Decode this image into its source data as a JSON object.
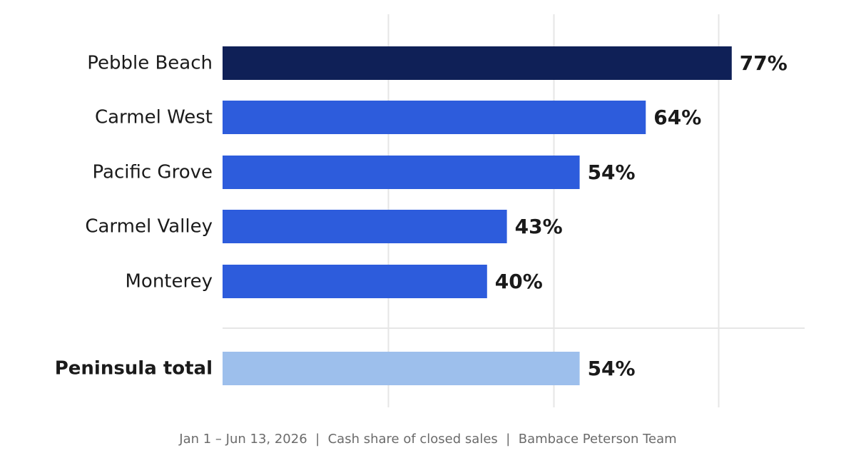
{
  "chart_data": {
    "type": "bar",
    "orientation": "horizontal",
    "categories": [
      "Pebble Beach",
      "Carmel West",
      "Pacific Grove",
      "Carmel Valley",
      "Monterey"
    ],
    "values": [
      77,
      64,
      54,
      43,
      40
    ],
    "value_labels": [
      "77%",
      "64%",
      "54%",
      "43%",
      "40%"
    ],
    "total": {
      "label": "Peninsula total",
      "value": 54,
      "value_label": "54%"
    },
    "xlim": [
      0,
      88
    ],
    "grid": "vertical",
    "colors": {
      "top_bar": "#0f2057",
      "bars": "#2d5cdc",
      "total_bar": "#9dbfec",
      "gridline": "#e6e6e6",
      "text": "#1a1a1a",
      "caption": "#6b6b6b"
    }
  },
  "caption": "Jan 1 – Jun 13, 2026  |  Cash share of closed sales  |  Bambace Peterson Team"
}
